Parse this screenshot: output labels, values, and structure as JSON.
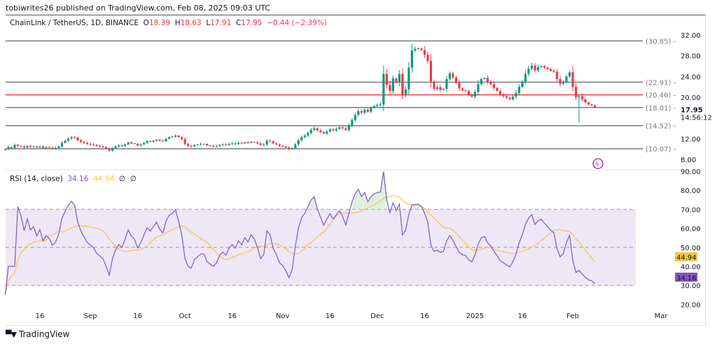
{
  "header": {
    "published": "tobiwrites26 published on TradingView.com, Feb 08, 2025 09:03 UTC"
  },
  "legend": {
    "symbol": "ChainLink / TetherUS, 1D, BINANCE",
    "o_label": "O",
    "o": "18.39",
    "h_label": "H",
    "h": "18.63",
    "l_label": "L",
    "l": "17.91",
    "c_label": "C",
    "c": "17.95",
    "change": "−0.44 (−2.39%)"
  },
  "rsi_legend": {
    "name": "RSI (14, close)",
    "rsi": "34.16",
    "ma": "44.94",
    "x1": "∅",
    "x2": "∅"
  },
  "colors": {
    "up": "#089981",
    "down": "#f23645",
    "level": "#787b86",
    "level_key": "#f23645",
    "rsi": "#7e57c2",
    "rsi_ma": "#f7c548",
    "band": "#ede7f6"
  },
  "price_axis": {
    "ticks": [
      "32.00",
      "28.00",
      "24.00",
      "20.00",
      "12.00",
      "8.00"
    ],
    "last_price": "17.95",
    "countdown": "14:56:12"
  },
  "levels": [
    {
      "value": 30.85,
      "label": "(30.85)"
    },
    {
      "value": 22.91,
      "label": "(22.91)"
    },
    {
      "value": 20.46,
      "label": "(20.46)",
      "key": true
    },
    {
      "value": 18.01,
      "label": "(18.01)"
    },
    {
      "value": 14.52,
      "label": "(14.52)"
    },
    {
      "value": 10.07,
      "label": "(10.07)"
    }
  ],
  "rsi_axis": {
    "ticks": [
      "90.00",
      "80.00",
      "70.00",
      "60.00",
      "50.00",
      "40.00",
      "30.00",
      "20.00"
    ],
    "rsi_value": "34.16",
    "ma_value": "44.94"
  },
  "time_axis": [
    "16",
    "Sep",
    "16",
    "Oct",
    "16",
    "Nov",
    "16",
    "Dec",
    "16",
    "2025",
    "16",
    "Feb",
    "Mar"
  ],
  "footer": {
    "brand": "TradingView",
    "logo": "TV"
  },
  "chart_data": [
    {
      "type": "candlestick",
      "title": "ChainLink / TetherUS, 1D, BINANCE",
      "start_date": "2024-08-05",
      "end_date": "2025-02-08",
      "ylim": [
        7,
        33
      ],
      "closes": [
        10.0,
        10.4,
        10.2,
        10.8,
        10.6,
        10.5,
        10.3,
        10.6,
        10.4,
        10.5,
        10.3,
        10.5,
        10.2,
        10.4,
        10.3,
        10.1,
        10.2,
        10.5,
        11.2,
        11.6,
        12.0,
        12.3,
        12.2,
        11.7,
        11.4,
        11.2,
        11.0,
        10.9,
        10.8,
        10.6,
        10.5,
        10.4,
        10.1,
        9.7,
        10.2,
        10.5,
        10.7,
        10.6,
        10.9,
        11.3,
        11.1,
        11.0,
        10.7,
        10.9,
        11.2,
        11.5,
        11.4,
        11.6,
        11.8,
        11.6,
        11.5,
        12.0,
        12.3,
        12.4,
        12.6,
        12.3,
        11.9,
        11.0,
        10.6,
        10.5,
        10.8,
        10.9,
        11.0,
        11.0,
        10.7,
        10.6,
        10.5,
        10.6,
        10.8,
        10.9,
        10.8,
        11.0,
        11.1,
        11.0,
        11.2,
        11.1,
        11.3,
        11.2,
        11.4,
        11.3,
        11.1,
        10.8,
        10.9,
        11.6,
        11.5,
        11.1,
        10.9,
        10.6,
        10.5,
        10.3,
        10.0,
        10.2,
        10.9,
        11.7,
        12.3,
        12.6,
        13.1,
        13.7,
        14.0,
        13.6,
        13.3,
        13.0,
        13.4,
        13.8,
        13.6,
        13.9,
        14.2,
        14.0,
        13.7,
        14.5,
        15.6,
        16.6,
        17.3,
        17.0,
        17.6,
        17.2,
        17.9,
        18.3,
        18.5,
        18.6,
        24.5,
        22.4,
        21.2,
        23.6,
        22.8,
        24.5,
        20.5,
        21.5,
        25.7,
        29.0,
        29.3,
        29.4,
        29.1,
        28.2,
        27.0,
        23.0,
        21.6,
        21.9,
        21.4,
        21.6,
        23.5,
        24.6,
        23.8,
        22.8,
        21.7,
        21.3,
        21.2,
        20.4,
        20.1,
        21.0,
        22.5,
        23.5,
        23.7,
        22.9,
        22.5,
        21.8,
        21.2,
        20.5,
        20.2,
        19.9,
        19.6,
        20.1,
        20.8,
        22.0,
        23.0,
        24.5,
        25.5,
        26.1,
        25.2,
        25.8,
        26.0,
        25.7,
        25.4,
        25.1,
        24.9,
        23.5,
        22.6,
        22.9,
        24.0,
        24.8,
        22.0,
        20.0,
        20.2,
        19.6,
        19.0,
        18.6,
        18.39,
        17.95
      ],
      "last_candle": {
        "open": 18.39,
        "high": 18.63,
        "low": 17.91,
        "close": 17.95
      },
      "notable_lows": {
        "2025-02-03": 15.0
      }
    },
    {
      "type": "line",
      "title": "RSI (14, close)",
      "ylim": [
        17,
        91
      ],
      "series": [
        {
          "name": "RSI",
          "last": 34.16
        },
        {
          "name": "RSI-based MA",
          "last": 44.94
        }
      ],
      "bands": [
        30,
        50,
        70
      ]
    }
  ]
}
